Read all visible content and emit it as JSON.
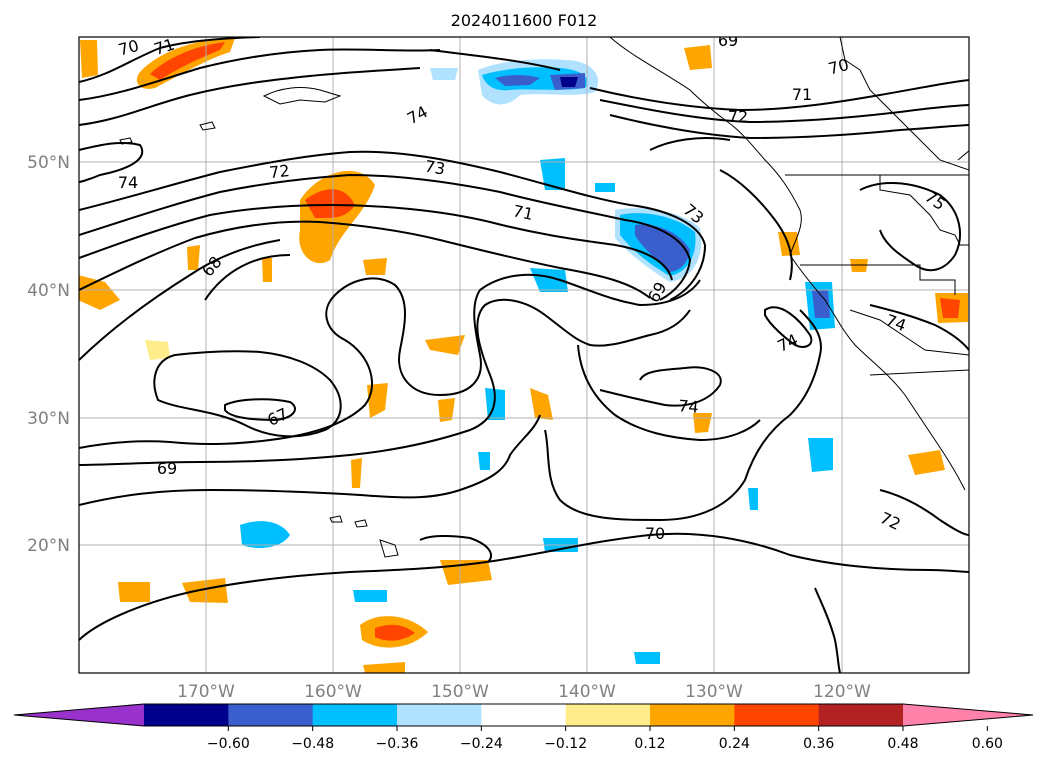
{
  "title": "2024011600 F012",
  "map": {
    "lat_labels": [
      "50°N",
      "40°N",
      "30°N",
      "20°N"
    ],
    "lon_labels": [
      "170°W",
      "160°W",
      "150°W",
      "140°W",
      "130°W",
      "120°W"
    ],
    "contour_labels": [
      "70",
      "71",
      "74",
      "74",
      "72",
      "73",
      "71",
      "68",
      "67",
      "69",
      "69",
      "73",
      "72",
      "71",
      "70",
      "69",
      "74",
      "74",
      "70",
      "75",
      "74",
      "72"
    ]
  },
  "colorbar": {
    "ticks": [
      "−0.60",
      "−0.48",
      "−0.36",
      "−0.24",
      "−0.12",
      "0.12",
      "0.24",
      "0.36",
      "0.48",
      "0.60"
    ],
    "colors": [
      "#9932cc",
      "#00008b",
      "#3a5fcd",
      "#00bfff",
      "#b0e2ff",
      "#ffffff",
      "#ffec8b",
      "#ffa500",
      "#ff4500",
      "#b22222",
      "#ff82ab"
    ]
  }
}
